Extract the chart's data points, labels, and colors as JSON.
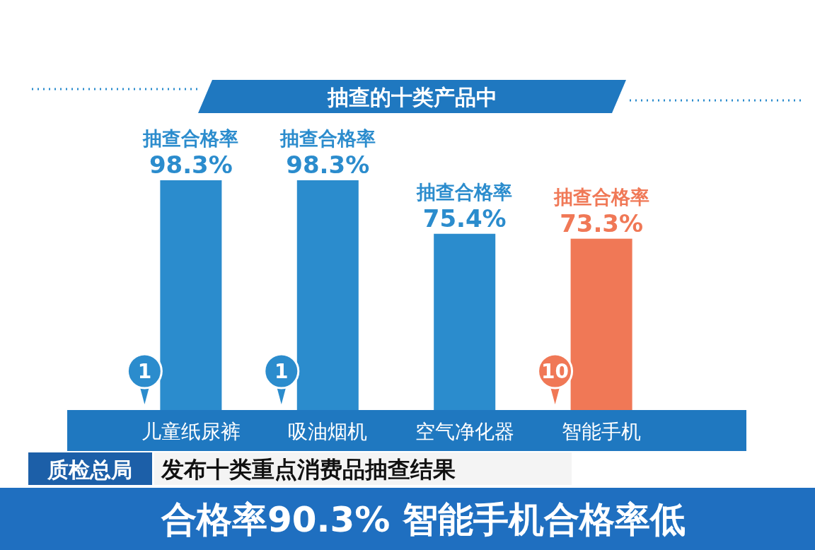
{
  "chart_data": {
    "type": "bar",
    "title": "抽查的十类产品中",
    "categories": [
      "儿童纸尿裤",
      "吸油烟机",
      "空气净化器",
      "智能手机"
    ],
    "values": [
      98.3,
      98.3,
      75.4,
      73.3
    ],
    "colors": [
      "#2b8ccd",
      "#2b8ccd",
      "#2b8ccd",
      "#f07856"
    ],
    "value_labels": [
      "98.3%",
      "98.3%",
      "75.4%",
      "73.3%"
    ],
    "data_labels": true,
    "annotations": [
      {
        "text": "抽查合格率",
        "x": "儿童纸尿裤",
        "y": 98.3
      },
      {
        "text": "抽查合格率",
        "x": "吸油烟机",
        "y": 98.3
      },
      {
        "text": "抽查合格率",
        "x": "空气净化器",
        "y": 75.4
      },
      {
        "text": "抽查合格率",
        "x": "智能手机",
        "y": 73.3
      },
      {
        "text": "1",
        "x": "儿童纸尿裤",
        "y": 0
      },
      {
        "text": "1",
        "x": "吸油烟机",
        "y": 0
      },
      {
        "text": "10",
        "x": "智能手机",
        "y": 0
      },
      "质检总局",
      "发布十类重点消费品抽查结果",
      "合格率90.3% 智能手机合格率低"
    ]
  }
}
